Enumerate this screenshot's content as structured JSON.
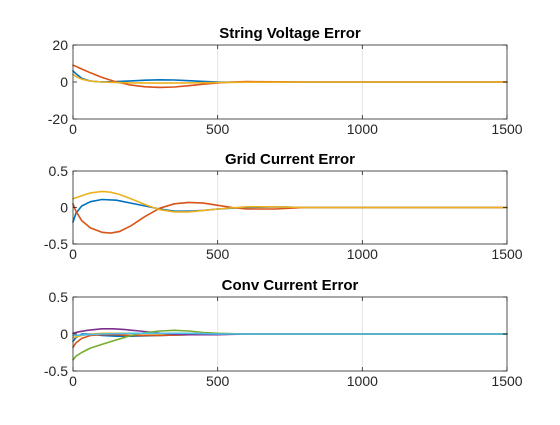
{
  "chart_data": [
    {
      "type": "line",
      "title": "String Voltage Error",
      "xlabel": "",
      "ylabel": "",
      "xlim": [
        0,
        1500
      ],
      "ylim": [
        -20,
        20
      ],
      "xticks": [
        0,
        500,
        1000,
        1500
      ],
      "yticks": [
        -20,
        0,
        20
      ],
      "xtick_labels": [
        "0",
        "500",
        "1000",
        "1500"
      ],
      "ytick_labels": [
        "-20",
        "0",
        "20"
      ],
      "grid": "x",
      "series": [
        {
          "color": "#0072BD",
          "x": [
            0,
            10,
            30,
            60,
            100,
            150,
            200,
            250,
            300,
            350,
            400,
            450,
            500,
            600,
            700,
            800,
            1000,
            1500
          ],
          "y": [
            6,
            4.5,
            2,
            0.5,
            0,
            0.2,
            0.6,
            1,
            1.2,
            1.1,
            0.7,
            0.3,
            0,
            -0.1,
            0,
            0,
            0,
            0
          ]
        },
        {
          "color": "#D95319",
          "x": [
            0,
            10,
            30,
            60,
            100,
            150,
            200,
            250,
            300,
            350,
            400,
            450,
            500,
            550,
            600,
            700,
            800,
            1000,
            1500
          ],
          "y": [
            9,
            8.5,
            7,
            5,
            2.5,
            0,
            -1.7,
            -2.6,
            -2.9,
            -2.7,
            -2,
            -1.2,
            -0.5,
            0,
            0.2,
            0.1,
            0,
            0,
            0
          ]
        },
        {
          "color": "#EDB120",
          "x": [
            0,
            10,
            30,
            60,
            100,
            150,
            200,
            300,
            400,
            500,
            600,
            800,
            1000,
            1500
          ],
          "y": [
            4,
            3,
            1.5,
            0.5,
            0,
            -0.3,
            -0.5,
            -0.6,
            -0.5,
            -0.3,
            -0.1,
            0,
            0,
            0
          ]
        }
      ]
    },
    {
      "type": "line",
      "title": "Grid Current Error",
      "xlabel": "",
      "ylabel": "",
      "xlim": [
        0,
        1500
      ],
      "ylim": [
        -0.5,
        0.5
      ],
      "xticks": [
        0,
        500,
        1000,
        1500
      ],
      "yticks": [
        -0.5,
        0,
        0.5
      ],
      "xtick_labels": [
        "0",
        "500",
        "1000",
        "1500"
      ],
      "ytick_labels": [
        "-0.5",
        "0",
        "0.5"
      ],
      "grid": "x",
      "series": [
        {
          "color": "#0072BD",
          "x": [
            0,
            10,
            30,
            60,
            100,
            150,
            200,
            250,
            300,
            350,
            400,
            450,
            500,
            550,
            600,
            700,
            800,
            1000,
            1500
          ],
          "y": [
            -0.2,
            -0.08,
            0.02,
            0.08,
            0.11,
            0.1,
            0.06,
            0.02,
            -0.02,
            -0.05,
            -0.05,
            -0.04,
            -0.02,
            -0.01,
            0,
            0.01,
            0,
            0,
            0
          ]
        },
        {
          "color": "#D95319",
          "x": [
            0,
            10,
            30,
            60,
            100,
            130,
            160,
            200,
            250,
            300,
            350,
            400,
            450,
            500,
            550,
            600,
            700,
            800,
            1000,
            1500
          ],
          "y": [
            0.05,
            -0.05,
            -0.18,
            -0.28,
            -0.34,
            -0.35,
            -0.33,
            -0.25,
            -0.12,
            -0.01,
            0.05,
            0.07,
            0.06,
            0.03,
            0,
            -0.02,
            -0.02,
            0,
            0,
            0
          ]
        },
        {
          "color": "#EDB120",
          "x": [
            0,
            30,
            60,
            100,
            130,
            160,
            200,
            250,
            300,
            350,
            400,
            450,
            500,
            600,
            700,
            800,
            1000,
            1500
          ],
          "y": [
            0.12,
            0.16,
            0.2,
            0.22,
            0.21,
            0.18,
            0.12,
            0.04,
            -0.03,
            -0.06,
            -0.06,
            -0.04,
            -0.02,
            0.01,
            0.01,
            0,
            0,
            0
          ]
        }
      ]
    },
    {
      "type": "line",
      "title": "Conv Current Error",
      "xlabel": "",
      "ylabel": "",
      "xlim": [
        0,
        1500
      ],
      "ylim": [
        -0.5,
        0.5
      ],
      "xticks": [
        0,
        500,
        1000,
        1500
      ],
      "yticks": [
        -0.5,
        0,
        0.5
      ],
      "xtick_labels": [
        "0",
        "500",
        "1000",
        "1500"
      ],
      "ytick_labels": [
        "-0.5",
        "0",
        "0.5"
      ],
      "grid": "x",
      "series": [
        {
          "color": "#0072BD",
          "x": [
            0,
            10,
            30,
            60,
            100,
            150,
            200,
            300,
            400,
            500,
            700,
            1000,
            1500
          ],
          "y": [
            -0.1,
            -0.05,
            0,
            0,
            -0.02,
            -0.03,
            -0.03,
            -0.02,
            -0.01,
            0,
            0,
            0,
            0
          ]
        },
        {
          "color": "#D95319",
          "x": [
            0,
            10,
            30,
            60,
            100,
            150,
            200,
            250,
            300,
            400,
            500,
            700,
            1000,
            1500
          ],
          "y": [
            -0.18,
            -0.12,
            -0.06,
            -0.02,
            -0.01,
            -0.01,
            -0.02,
            -0.02,
            -0.02,
            -0.01,
            0,
            0,
            0,
            0
          ]
        },
        {
          "color": "#EDB120",
          "x": [
            0,
            30,
            60,
            100,
            150,
            200,
            300,
            400,
            500,
            700,
            1000,
            1500
          ],
          "y": [
            -0.05,
            -0.02,
            0,
            0.01,
            0.01,
            0.01,
            0,
            0,
            0,
            0,
            0,
            0
          ]
        },
        {
          "color": "#7E2F8E",
          "x": [
            0,
            20,
            50,
            100,
            140,
            180,
            230,
            280,
            330,
            400,
            500,
            600,
            700,
            1000,
            1500
          ],
          "y": [
            0.01,
            0.03,
            0.05,
            0.07,
            0.07,
            0.06,
            0.04,
            0.02,
            0,
            -0.01,
            -0.01,
            0,
            0,
            0,
            0
          ]
        },
        {
          "color": "#77AC30",
          "x": [
            0,
            10,
            30,
            60,
            100,
            150,
            200,
            250,
            300,
            350,
            400,
            450,
            500,
            600,
            700,
            1000,
            1500
          ],
          "y": [
            -0.35,
            -0.3,
            -0.25,
            -0.19,
            -0.14,
            -0.08,
            -0.02,
            0.02,
            0.04,
            0.05,
            0.04,
            0.02,
            0.01,
            0,
            0,
            0,
            0
          ]
        },
        {
          "color": "#4DBEEE",
          "x": [
            0,
            50,
            100,
            200,
            300,
            400,
            500,
            700,
            1000,
            1500
          ],
          "y": [
            -0.02,
            -0.01,
            0,
            0.01,
            0.01,
            0.01,
            0,
            0,
            0,
            0
          ]
        }
      ]
    }
  ]
}
